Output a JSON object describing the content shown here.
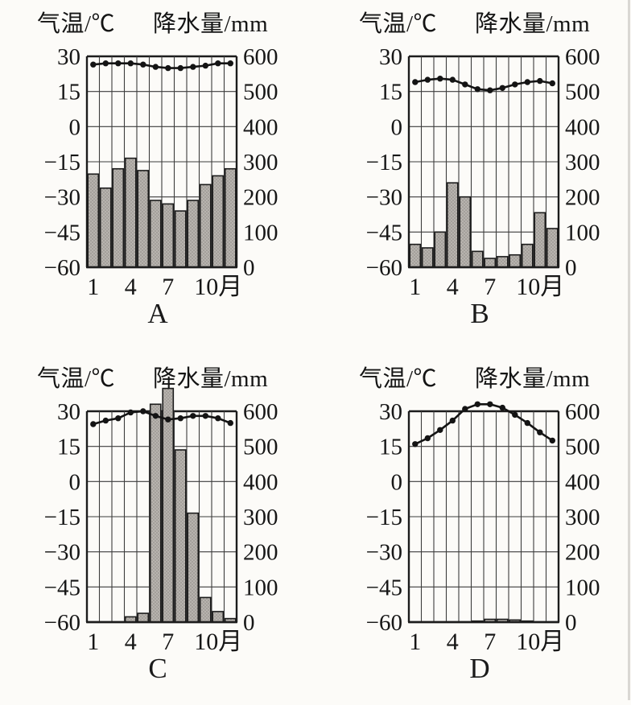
{
  "figure": {
    "background": "#fcfbf8",
    "description": "Four monthly climate graphs (temperature line + precipitation bars) labeled A, B, C, D"
  },
  "axes": {
    "temp_axis_label": "气温/℃",
    "precip_axis_label": "降水量/mm",
    "temp_ticks": [
      "30",
      "15",
      "0",
      "−15",
      "−30",
      "−45",
      "−60"
    ],
    "precip_ticks": [
      "600",
      "500",
      "400",
      "300",
      "200",
      "100",
      "0"
    ],
    "x_tick_labels": [
      "1",
      "4",
      "7",
      "10月"
    ],
    "x_tick_months": [
      1,
      4,
      7,
      10
    ],
    "temp_min": -60,
    "temp_max": 30,
    "precip_min": 0,
    "precip_max": 600,
    "grid": "on",
    "note_unit_relation": "15°C per gridline on left axis, 100 mm per gridline on right axis"
  },
  "colors": {
    "background": "#fcfbf8",
    "bar_fill": "#b7b3ae",
    "bar_dot": "#8d8984",
    "bar_stroke": "#1c1c1c",
    "grid": "#3d3d3d",
    "frame": "#1c1c1c",
    "line": "#141414",
    "text": "#161616",
    "edge_artifact": "#d9d7d3"
  },
  "chart_data": [
    {
      "id": "A",
      "label": "A",
      "type": "bar+line climograph",
      "categories": [
        1,
        2,
        3,
        4,
        5,
        6,
        7,
        8,
        9,
        10,
        11,
        12
      ],
      "left_ylabel": "气温/℃",
      "right_ylabel": "降水量/mm",
      "left_ylim": [
        -60,
        30
      ],
      "right_ylim": [
        0,
        600
      ],
      "series": [
        {
          "name": "气温",
          "type": "line",
          "axis": "left",
          "unit": "℃",
          "values": [
            26.5,
            27,
            27,
            27,
            26.5,
            25.5,
            25,
            25,
            25.5,
            26,
            27,
            27
          ]
        },
        {
          "name": "降水量",
          "type": "bar",
          "axis": "right",
          "unit": "mm",
          "values": [
            265,
            225,
            280,
            310,
            275,
            190,
            180,
            160,
            190,
            235,
            260,
            280
          ]
        }
      ]
    },
    {
      "id": "B",
      "label": "B",
      "type": "bar+line climograph",
      "categories": [
        1,
        2,
        3,
        4,
        5,
        6,
        7,
        8,
        9,
        10,
        11,
        12
      ],
      "left_ylabel": "气温/℃",
      "right_ylabel": "降水量/mm",
      "left_ylim": [
        -60,
        30
      ],
      "right_ylim": [
        0,
        600
      ],
      "series": [
        {
          "name": "气温",
          "type": "line",
          "axis": "left",
          "unit": "℃",
          "values": [
            19,
            20,
            20.5,
            20,
            18,
            16,
            15.5,
            16.5,
            18,
            19,
            19.5,
            18.5
          ]
        },
        {
          "name": "降水量",
          "type": "bar",
          "axis": "right",
          "unit": "mm",
          "values": [
            65,
            55,
            100,
            240,
            200,
            45,
            25,
            30,
            35,
            65,
            155,
            110
          ]
        }
      ]
    },
    {
      "id": "C",
      "label": "C",
      "type": "bar+line climograph",
      "categories": [
        1,
        2,
        3,
        4,
        5,
        6,
        7,
        8,
        9,
        10,
        11,
        12
      ],
      "left_ylabel": "气温/℃",
      "right_ylabel": "降水量/mm",
      "left_ylim": [
        -60,
        30
      ],
      "right_ylim": [
        0,
        600
      ],
      "note": "June and July bars overflow above the 600 mm frame line",
      "series": [
        {
          "name": "气温",
          "type": "line",
          "axis": "left",
          "unit": "℃",
          "values": [
            24.5,
            26,
            27,
            29.5,
            30,
            28,
            26.5,
            27,
            28,
            28,
            27,
            25
          ]
        },
        {
          "name": "降水量",
          "type": "bar",
          "axis": "right",
          "unit": "mm",
          "values": [
            0,
            0,
            0,
            15,
            25,
            620,
            665,
            490,
            310,
            70,
            30,
            10
          ]
        }
      ]
    },
    {
      "id": "D",
      "label": "D",
      "type": "bar+line climograph",
      "categories": [
        1,
        2,
        3,
        4,
        5,
        6,
        7,
        8,
        9,
        10,
        11,
        12
      ],
      "left_ylabel": "气温/℃",
      "right_ylabel": "降水量/mm",
      "left_ylim": [
        -60,
        30
      ],
      "right_ylim": [
        0,
        600
      ],
      "note": "Temperature peaks above the 30°C frame line; precipitation nearly zero all year",
      "series": [
        {
          "name": "气温",
          "type": "line",
          "axis": "left",
          "unit": "℃",
          "values": [
            16,
            18.5,
            22,
            26,
            31,
            33,
            33,
            31.5,
            28.5,
            25,
            21,
            17.5
          ]
        },
        {
          "name": "降水量",
          "type": "bar",
          "axis": "right",
          "unit": "mm",
          "values": [
            0,
            0,
            0,
            0,
            0,
            3,
            8,
            8,
            6,
            3,
            0,
            0
          ]
        }
      ]
    }
  ]
}
